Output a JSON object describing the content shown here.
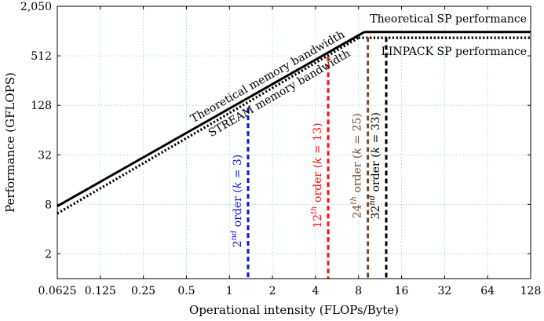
{
  "chart_data": {
    "type": "line",
    "xlabel": "Operational intensity (FLOPs/Byte)",
    "ylabel": "Performance (GFLOPS)",
    "x_scale": "log2",
    "y_scale": "log2",
    "xlim": [
      0.0625,
      128
    ],
    "ylim": [
      1,
      2050
    ],
    "grid": true,
    "x_ticks": [
      0.0625,
      0.125,
      0.25,
      0.5,
      1,
      2,
      4,
      8,
      16,
      32,
      64,
      128
    ],
    "x_tick_labels": [
      "0.0625",
      "0.125",
      "0.25",
      "0.5",
      "1",
      "2",
      "4",
      "8",
      "16",
      "32",
      "64",
      "128"
    ],
    "y_ticks": [
      2,
      8,
      32,
      128,
      512,
      2050
    ],
    "y_tick_labels": [
      "2",
      "8",
      "32",
      "128",
      "512",
      "2,050"
    ],
    "series": [
      {
        "name": "Theoretical memory bandwidth",
        "style": "solid",
        "color": "#000000",
        "points": [
          [
            0.0625,
            7.6
          ],
          [
            8.8,
            1000
          ]
        ]
      },
      {
        "name": "Theoretical SP performance",
        "style": "solid",
        "color": "#000000",
        "points": [
          [
            8.8,
            1000
          ],
          [
            128,
            1000
          ]
        ]
      },
      {
        "name": "STREAM memory bandwidth",
        "style": "dotted",
        "color": "#000000",
        "points": [
          [
            0.0625,
            6.2
          ],
          [
            8.0,
            850
          ]
        ]
      },
      {
        "name": "LINPACK SP performance",
        "style": "dotted",
        "color": "#000000",
        "points": [
          [
            8.0,
            850
          ],
          [
            128,
            850
          ]
        ]
      }
    ],
    "verticals": [
      {
        "label_base": "2",
        "label_sup": "nd",
        "label_rest": " order (",
        "label_k": "k",
        "label_eq": " = 3)",
        "x": 1.35,
        "y_top": 120,
        "color": "#1010e0"
      },
      {
        "label_base": "12",
        "label_sup": "th",
        "label_rest": " order (",
        "label_k": "k",
        "label_eq": " = 13)",
        "x": 4.9,
        "y_top": 500,
        "color": "#ff1010"
      },
      {
        "label_base": "24",
        "label_sup": "th",
        "label_rest": " order (",
        "label_k": "k",
        "label_eq": " = 25)",
        "x": 9.3,
        "y_top": 860,
        "color": "#7a4a2a"
      },
      {
        "label_base": "32",
        "label_sup": "nd",
        "label_rest": " order (",
        "label_k": "k",
        "label_eq": " = 33)",
        "x": 12.5,
        "y_top": 860,
        "color": "#000000"
      }
    ]
  },
  "annotations": {
    "theoretical_bw": "Theoretical memory bandwidth",
    "stream_bw": "STREAM memory bandwidth",
    "theoretical_sp": "Theoretical SP performance",
    "linpack_sp": "LINPACK SP performance"
  }
}
